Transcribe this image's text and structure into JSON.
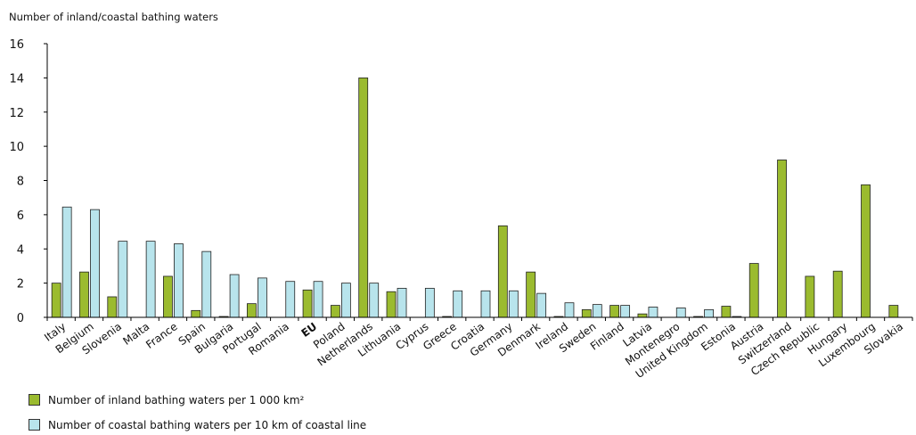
{
  "chart_data": {
    "type": "bar",
    "title": "Number of inland/coastal bathing waters",
    "ylim": [
      0,
      16
    ],
    "yticks": [
      0,
      2,
      4,
      6,
      8,
      10,
      12,
      14,
      16
    ],
    "grid": false,
    "legend_position": "bottom-left",
    "categories": [
      "Italy",
      "Belgium",
      "Slovenia",
      "Malta",
      "France",
      "Spain",
      "Bulgaria",
      "Portugal",
      "Romania",
      "EU",
      "Poland",
      "Netherlands",
      "Lithuania",
      "Cyprus",
      "Greece",
      "Croatia",
      "Germany",
      "Denmark",
      "Ireland",
      "Sweden",
      "Finland",
      "Latvia",
      "Montenegro",
      "United Kingdom",
      "Estonia",
      "Austria",
      "Switzerland",
      "Czech Republic",
      "Hungary",
      "Luxembourg",
      "Slovakia"
    ],
    "bold_categories": [
      "EU"
    ],
    "series": [
      {
        "name": "Number of inland bathing waters per 1 000 km²",
        "color": "#9bbb2f",
        "values": [
          2.0,
          2.65,
          1.2,
          0,
          2.4,
          0.4,
          0.05,
          0.8,
          0,
          1.6,
          0.7,
          14.0,
          1.5,
          0,
          0.05,
          0,
          5.35,
          2.65,
          0.05,
          0.45,
          0.7,
          0.2,
          0,
          0.05,
          0.65,
          3.15,
          9.2,
          2.4,
          2.7,
          7.75,
          0.7
        ]
      },
      {
        "name": "Number of coastal bathing waters per 10 km of coastal line",
        "color": "#b8e4ec",
        "values": [
          6.45,
          6.3,
          4.45,
          4.45,
          4.3,
          3.85,
          2.5,
          2.3,
          2.1,
          2.1,
          2.0,
          2.0,
          1.7,
          1.7,
          1.55,
          1.55,
          1.55,
          1.4,
          0.85,
          0.75,
          0.7,
          0.6,
          0.55,
          0.45,
          0.05,
          0,
          0,
          0,
          0,
          0,
          0
        ]
      }
    ]
  },
  "legend": {
    "inland_label": "Number of inland bathing waters per 1 000 km²",
    "coastal_label": "Number of coastal bathing waters per 10 km of coastal line"
  }
}
